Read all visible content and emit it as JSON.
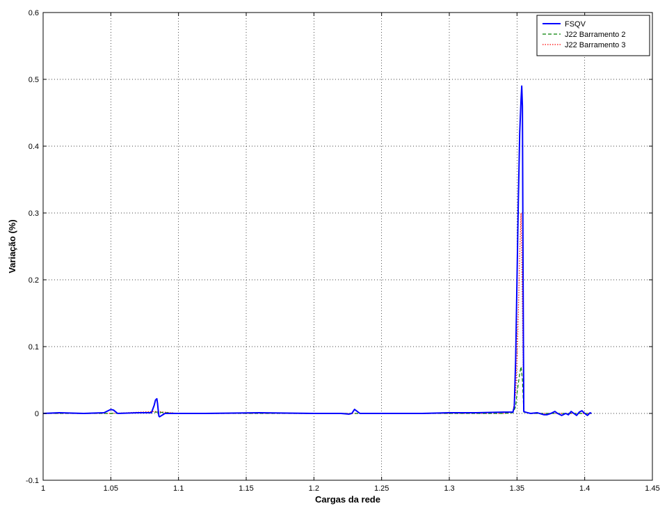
{
  "chart_data": {
    "type": "line",
    "title": "",
    "xlabel": "Cargas da rede",
    "ylabel": "Variação (%)",
    "xlim": [
      1,
      1.45
    ],
    "ylim": [
      -0.1,
      0.6
    ],
    "xticks": [
      1,
      1.05,
      1.1,
      1.15,
      1.2,
      1.25,
      1.3,
      1.35,
      1.4,
      1.45
    ],
    "xtick_labels": [
      "1",
      "1.05",
      "1.1",
      "1.15",
      "1.2",
      "1.25",
      "1.3",
      "1.35",
      "1.4",
      "1.45"
    ],
    "yticks": [
      -0.1,
      0,
      0.1,
      0.2,
      0.3,
      0.4,
      0.5,
      0.6
    ],
    "ytick_labels": [
      "-0.1",
      "0",
      "0.1",
      "0.2",
      "0.3",
      "0.4",
      "0.5",
      "0.6"
    ],
    "grid": true,
    "legend_position": "top-right",
    "series": [
      {
        "name": "FSQV",
        "color": "#0000ff",
        "dash": "solid",
        "x": [
          1.0,
          1.012,
          1.03,
          1.045,
          1.048,
          1.05,
          1.052,
          1.055,
          1.07,
          1.08,
          1.082,
          1.083,
          1.084,
          1.0845,
          1.085,
          1.0855,
          1.086,
          1.09,
          1.12,
          1.16,
          1.2,
          1.22,
          1.226,
          1.228,
          1.23,
          1.234,
          1.26,
          1.28,
          1.3,
          1.32,
          1.34,
          1.347,
          1.348,
          1.349,
          1.35,
          1.351,
          1.352,
          1.353,
          1.3535,
          1.354,
          1.3545,
          1.355,
          1.356,
          1.36,
          1.365,
          1.37,
          1.372,
          1.375,
          1.378,
          1.38,
          1.383,
          1.386,
          1.388,
          1.39,
          1.392,
          1.394,
          1.396,
          1.398,
          1.4,
          1.402,
          1.404,
          1.405
        ],
        "y": [
          0.0,
          0.001,
          0.0,
          0.001,
          0.004,
          0.006,
          0.005,
          0.0,
          0.001,
          0.001,
          0.012,
          0.02,
          0.022,
          0.015,
          0.005,
          -0.004,
          -0.005,
          0.0,
          0.0,
          0.001,
          0.0,
          0.0,
          -0.001,
          0.0,
          0.006,
          0.0,
          0.0,
          0.0,
          0.001,
          0.001,
          0.002,
          0.002,
          0.01,
          0.08,
          0.2,
          0.32,
          0.42,
          0.47,
          0.49,
          0.46,
          0.2,
          0.003,
          0.002,
          0.0,
          0.001,
          -0.002,
          -0.002,
          0.0,
          0.003,
          0.0,
          -0.003,
          0.0,
          -0.002,
          0.003,
          0.0,
          -0.003,
          0.002,
          0.004,
          0.0,
          -0.003,
          0.001,
          0.0
        ]
      },
      {
        "name": "J22 Barramento 2",
        "color": "#007f00",
        "dash": "dashed",
        "x": [
          1.0,
          1.05,
          1.084,
          1.1,
          1.2,
          1.3,
          1.34,
          1.347,
          1.349,
          1.35,
          1.351,
          1.352,
          1.353,
          1.354,
          1.355,
          1.36,
          1.4,
          1.405
        ],
        "y": [
          0.0,
          0.0,
          0.002,
          0.0,
          0.0,
          0.0,
          0.0,
          0.001,
          0.01,
          0.03,
          0.045,
          0.06,
          0.07,
          0.05,
          0.002,
          0.0,
          0.0,
          0.0
        ]
      },
      {
        "name": "J22 Barramento 3",
        "color": "#ff0000",
        "dash": "dotted",
        "x": [
          1.0,
          1.05,
          1.084,
          1.1,
          1.2,
          1.3,
          1.34,
          1.347,
          1.349,
          1.35,
          1.351,
          1.352,
          1.353,
          1.354,
          1.355,
          1.36,
          1.4,
          1.405
        ],
        "y": [
          0.0,
          0.0,
          0.003,
          0.0,
          0.0,
          0.0,
          0.0,
          0.002,
          0.03,
          0.08,
          0.15,
          0.24,
          0.3,
          0.16,
          0.002,
          0.0,
          0.0,
          0.0
        ]
      }
    ]
  }
}
